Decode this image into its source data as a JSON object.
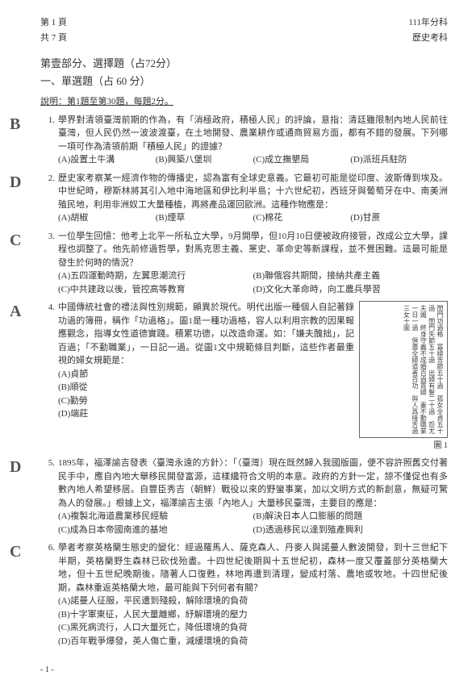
{
  "header": {
    "page_current": "第 1 頁",
    "page_total": "共 7 頁",
    "year_line": "111年分科",
    "subject_line": "歷史考科"
  },
  "section": {
    "part_title": "第壹部分、選擇題（占72分）",
    "sub_title": "一、單選題（占 60 分）",
    "instruction": "說明：第1題至第30題，每題2分。"
  },
  "annotations": {
    "q1": "B",
    "q2": "D",
    "q3": "C",
    "q4": "A",
    "q5": "D",
    "q6": "C"
  },
  "questions": [
    {
      "num": "1.",
      "text": "學界對清領臺灣前期的作為，有「消極政府，積極人民」的評論，意指：清廷雖限制內地人民前往臺灣，但人民仍然一波波渡臺，在土地開發、農業耕作或通商貿易方面，都有不錯的發展。下列哪一項可作為清領前期「積極人民」的證據？",
      "opts": [
        "(A)設置土牛溝",
        "(B)興築八堡圳",
        "(C)成立撫墾局",
        "(D)派班兵駐防"
      ],
      "cols": 4
    },
    {
      "num": "2.",
      "text": "歷史家考察某一經濟作物的傳播史，認為富有全球史意義。它最初可能是從印度、波斯傳到埃及。中世紀時，穆斯林將其引入地中海地區和伊比利半島；十六世紀初，西班牙與葡萄牙在中、南美洲殖民地，利用非洲奴工大量種植，再將產品運回歐洲。這種作物應是：",
      "opts": [
        "(A)胡椒",
        "(B)煙草",
        "(C)棉花",
        "(D)甘蔗"
      ],
      "cols": 4
    },
    {
      "num": "3.",
      "text": "一位學生回憶：他考上北平一所私立大學，9月開學，但10月10日便被政府接管，改成公立大學，課程也調整了。他先前修過哲學，對馬克思主義、黨史、革命史等新課程，並不覺困難。這最可能是發生於何時的情況？",
      "opts": [
        "(A)五四運動時期，左翼思潮流行",
        "(B)聯俄容共期間，接納共產主義",
        "(C)中共建政以後，管控高等教育",
        "(D)文化大革命時，向工農兵學習"
      ],
      "cols": 2
    },
    {
      "num": "4.",
      "text": "中國傳統社會的禮法與性別規範，顯異於現代。明代出版一種個人自記著錄功過的簿冊，稱作「功過格」。圖1是一種功過格，容人以利用宗教的因果報應觀念，指導女性道德實踐。積累功德，以改造命運。如：「嫌夫醜拙」，記百過；「不勤職業」，一日記一過。從圖1文中規範條目判斷，這些作者最重視的婦女規範是：",
      "opts": [
        "(A)貞節",
        "(B)順從",
        "(C)勤勞",
        "(D)端莊"
      ],
      "cols": 1,
      "figure": true
    },
    {
      "num": "5.",
      "text": "1895年，福澤諭吉發表〈臺灣永遠的方針〉：「（臺灣）現在既然歸入我國版圖，便不容許照舊交付著民手中，應自內地大舉移民開發富源，這樣纔符合文明的本意。政府的方針一定，諒不僅促也有多數內地人希望移居。自豐臣秀吉（朝鮮）戰役以來的野蠻事業，加以文明方式的新創意，無疑可驚為人的發展。」根據上文，福澤諭吉主張「內地人」大量移民臺灣，主要目的應是：",
      "opts": [
        "(A)複製北海道農業移民經驗",
        "(B)解決日本人口膨脹的問題",
        "(C)成為日本帝國南進的基地",
        "(D)透過移民以達到殖產興利"
      ],
      "cols": 2
    },
    {
      "num": "6.",
      "text": "學者考察英格蘭生態史的變化：經過羅馬人、薩克森人、丹麥人與諾曼人數波開發，到十三世紀下半期，英格蘭野生森林已砍伐殆盡。十四世紀後期與十五世紀初，森林一度又覆蓋部分英格蘭大地，但十五世紀晚期後，隨著人口復甦，林地再遭到清理，變成村落、農地或牧地。十四世紀後期，森林重返英格蘭大地，最可能與下列何者有關？",
      "opts": [
        "(A)諾曼人征服，平民遭到殘殺，解除環境的負荷",
        "(B)十字軍東征，人民大量離鄉，紓解環境的壓力",
        "(C)黑死病流行，人口大量死亡，降低環境的負荷",
        "(D)百年戰爭爆發，英人傷亡重，減緩環境的負荷"
      ],
      "cols": 1
    }
  ],
  "figure": {
    "label": "圖 1",
    "text": "閨門功過格　寡婦苦節五十過　孤女全貞五十過　閨門失節五十過　出婦有髮二十過　怨尤夫媚　終身守義不成婚百過貫婦　妻不動職業一日一過　倶盡全婦道者百功　與人爲接舌過　三女十圖"
  },
  "footer": "- 1 -"
}
